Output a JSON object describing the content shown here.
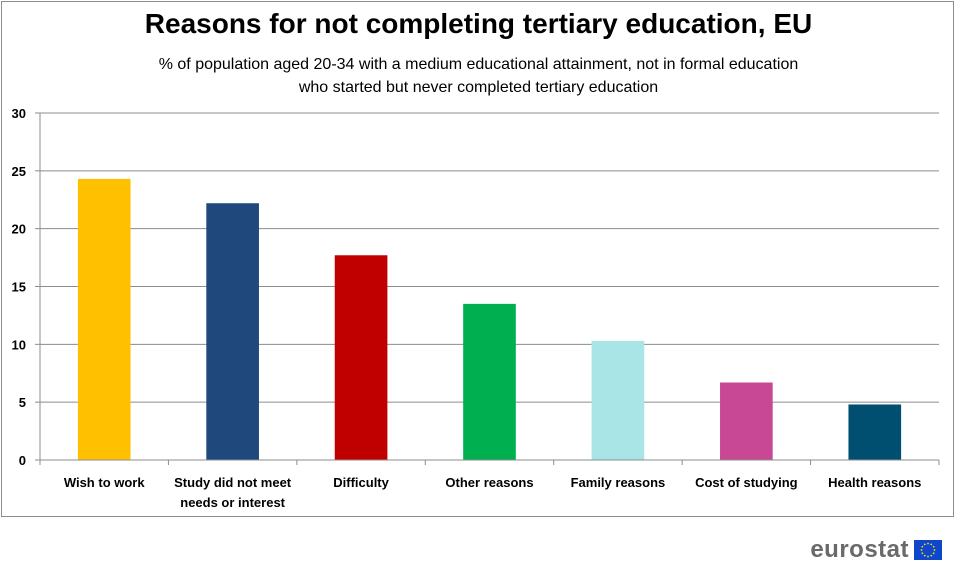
{
  "title": "Reasons for not completing tertiary education, EU",
  "subtitle_line1": "% of population aged 20-34 with a medium educational attainment, not in formal education",
  "subtitle_line2": "who started but never completed tertiary education",
  "brand": "eurostat",
  "flag_icon": "eu-flag-icon",
  "chart_data": {
    "type": "bar",
    "categories": [
      [
        "Wish to work"
      ],
      [
        "Study did not meet",
        "needs or interest"
      ],
      [
        "Difficulty"
      ],
      [
        "Other reasons"
      ],
      [
        "Family reasons"
      ],
      [
        "Cost of studying"
      ],
      [
        "Health reasons"
      ]
    ],
    "values": [
      24.3,
      22.2,
      17.7,
      13.5,
      10.3,
      6.7,
      4.8
    ],
    "colors": [
      "#ffc000",
      "#1f497d",
      "#c00000",
      "#00b050",
      "#a9e5e6",
      "#c94896",
      "#004f71"
    ],
    "ylim": [
      0,
      30
    ],
    "yticks": [
      0,
      5,
      10,
      15,
      20,
      25,
      30
    ],
    "grid": true,
    "xlabel": "",
    "ylabel": ""
  }
}
